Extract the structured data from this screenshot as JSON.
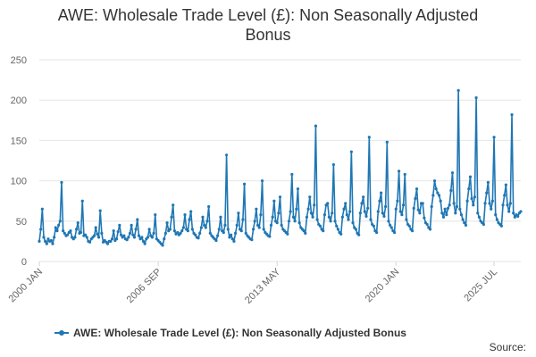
{
  "chart_data": {
    "type": "line",
    "title_lines": [
      "AWE: Wholesale Trade Level (£): Non Seasonally Adjusted",
      "Bonus"
    ],
    "xlabel": "",
    "ylabel": "",
    "ylim": [
      0,
      250
    ],
    "yticks": [
      0,
      50,
      100,
      150,
      200,
      250
    ],
    "x_tick_labels": [
      "2000 JAN",
      "2006 SEP",
      "2013 MAY",
      "2020 JAN",
      "2025 JUL"
    ],
    "x_tick_index": [
      0,
      80,
      160,
      240,
      306
    ],
    "grid": true,
    "legend": "bottom-center",
    "source_label": "Source:",
    "color": "#1f77b4",
    "series": [
      {
        "name": "AWE: Wholesale Trade Level (£): Non Seasonally Adjusted Bonus",
        "start": "2000-01",
        "values": [
          25,
          40,
          65,
          30,
          25,
          22,
          28,
          25,
          26,
          22,
          30,
          42,
          38,
          45,
          50,
          98,
          38,
          35,
          32,
          33,
          36,
          38,
          30,
          28,
          30,
          40,
          48,
          35,
          36,
          75,
          32,
          33,
          30,
          25,
          24,
          28,
          30,
          32,
          42,
          34,
          30,
          63,
          35,
          24,
          26,
          24,
          22,
          25,
          25,
          28,
          38,
          26,
          28,
          37,
          45,
          33,
          30,
          32,
          28,
          27,
          30,
          35,
          45,
          33,
          30,
          40,
          52,
          32,
          28,
          30,
          25,
          22,
          28,
          30,
          40,
          32,
          30,
          35,
          58,
          28,
          26,
          24,
          22,
          20,
          28,
          35,
          48,
          38,
          40,
          55,
          70,
          38,
          34,
          36,
          33,
          35,
          38,
          42,
          58,
          40,
          38,
          52,
          62,
          40,
          35,
          33,
          30,
          29,
          35,
          42,
          55,
          45,
          42,
          50,
          68,
          35,
          32,
          30,
          28,
          26,
          32,
          40,
          55,
          38,
          36,
          45,
          132,
          40,
          30,
          33,
          28,
          25,
          35,
          45,
          60,
          40,
          38,
          52,
          96,
          35,
          32,
          30,
          28,
          27,
          40,
          50,
          65,
          45,
          42,
          58,
          100,
          40,
          36,
          34,
          32,
          31,
          45,
          55,
          75,
          50,
          48,
          60,
          80,
          45,
          40,
          38,
          36,
          34,
          50,
          62,
          108,
          55,
          50,
          65,
          90,
          48,
          42,
          40,
          38,
          35,
          55,
          65,
          80,
          60,
          55,
          70,
          168,
          52,
          46,
          44,
          40,
          38,
          58,
          70,
          72,
          55,
          50,
          60,
          120,
          50,
          44,
          40,
          36,
          34,
          55,
          65,
          72,
          58,
          52,
          62,
          136,
          48,
          42,
          40,
          35,
          33,
          60,
          72,
          80,
          62,
          56,
          66,
          154,
          52,
          46,
          44,
          38,
          36,
          62,
          75,
          85,
          60,
          56,
          68,
          148,
          50,
          45,
          42,
          38,
          36,
          65,
          75,
          112,
          62,
          58,
          70,
          108,
          52,
          46,
          44,
          40,
          38,
          66,
          78,
          90,
          64,
          60,
          72,
          72,
          54,
          48,
          46,
          42,
          40,
          68,
          82,
          100,
          90,
          85,
          82,
          75,
          60,
          55,
          65,
          58,
          66,
          70,
          88,
          110,
          72,
          60,
          68,
          212,
          65,
          58,
          52,
          48,
          45,
          75,
          90,
          105,
          78,
          70,
          80,
          203,
          60,
          55,
          50,
          48,
          46,
          72,
          85,
          98,
          72,
          65,
          75,
          154,
          58,
          52,
          48,
          46,
          44,
          70,
          82,
          95,
          70,
          62,
          72,
          182,
          60,
          55,
          58,
          56,
          60,
          62
        ]
      }
    ]
  }
}
